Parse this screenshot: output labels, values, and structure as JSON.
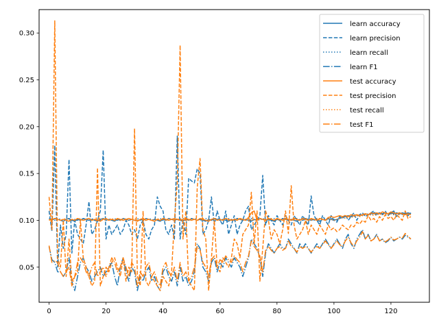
{
  "chart_data": {
    "type": "line",
    "title": "",
    "xlabel": "",
    "ylabel": "",
    "xlim": [
      -3.5,
      133.5
    ],
    "ylim": [
      0.0125,
      0.325
    ],
    "xticks": [
      0,
      20,
      40,
      60,
      80,
      100,
      120
    ],
    "yticks": [
      0.05,
      0.1,
      0.15,
      0.2,
      0.25,
      0.3
    ],
    "ytick_labels": [
      "0.05",
      "0.10",
      "0.15",
      "0.20",
      "0.25",
      "0.30"
    ],
    "grid": false,
    "legend_position": "upper-right",
    "n_points": 128,
    "series": [
      {
        "name": "learn accuracy",
        "color": "#1f77b4",
        "style": "solid",
        "values": [
          0.101,
          0.1,
          0.102,
          0.101,
          0.1,
          0.099,
          0.101,
          0.102,
          0.1,
          0.099,
          0.101,
          0.1,
          0.102,
          0.101,
          0.1,
          0.101,
          0.1,
          0.099,
          0.101,
          0.102,
          0.1,
          0.101,
          0.1,
          0.099,
          0.101,
          0.1,
          0.102,
          0.101,
          0.1,
          0.101,
          0.1,
          0.099,
          0.101,
          0.1,
          0.102,
          0.101,
          0.1,
          0.101,
          0.1,
          0.099,
          0.101,
          0.1,
          0.102,
          0.101,
          0.1,
          0.101,
          0.1,
          0.099,
          0.101,
          0.1,
          0.102,
          0.101,
          0.1,
          0.101,
          0.1,
          0.099,
          0.101,
          0.1,
          0.102,
          0.101,
          0.1,
          0.101,
          0.1,
          0.099,
          0.101,
          0.1,
          0.102,
          0.101,
          0.1,
          0.101,
          0.1,
          0.099,
          0.101,
          0.1,
          0.102,
          0.101,
          0.1,
          0.101,
          0.1,
          0.099,
          0.101,
          0.1,
          0.102,
          0.101,
          0.1,
          0.101,
          0.1,
          0.099,
          0.101,
          0.1,
          0.102,
          0.101,
          0.1,
          0.101,
          0.1,
          0.099,
          0.101,
          0.1,
          0.102,
          0.101,
          0.1,
          0.101,
          0.102,
          0.103,
          0.104,
          0.105,
          0.104,
          0.105,
          0.106,
          0.105,
          0.106,
          0.107,
          0.106,
          0.107,
          0.108,
          0.107,
          0.108,
          0.107,
          0.108,
          0.107,
          0.108,
          0.107,
          0.108,
          0.107,
          0.108,
          0.107,
          0.108,
          0.107
        ]
      },
      {
        "name": "learn precision",
        "color": "#1f77b4",
        "style": "dashed",
        "values": [
          0.11,
          0.088,
          0.18,
          0.05,
          0.095,
          0.07,
          0.085,
          0.165,
          0.065,
          0.1,
          0.085,
          0.08,
          0.075,
          0.095,
          0.12,
          0.085,
          0.09,
          0.1,
          0.11,
          0.175,
          0.08,
          0.095,
          0.085,
          0.09,
          0.095,
          0.085,
          0.09,
          0.1,
          0.095,
          0.085,
          0.09,
          0.08,
          0.095,
          0.1,
          0.085,
          0.08,
          0.09,
          0.095,
          0.125,
          0.115,
          0.11,
          0.09,
          0.085,
          0.095,
          0.08,
          0.19,
          0.08,
          0.1,
          0.085,
          0.145,
          0.142,
          0.14,
          0.155,
          0.15,
          0.085,
          0.09,
          0.1,
          0.125,
          0.095,
          0.11,
          0.1,
          0.095,
          0.11,
          0.085,
          0.095,
          0.105,
          0.085,
          0.095,
          0.1,
          0.11,
          0.115,
          0.09,
          0.095,
          0.1,
          0.105,
          0.148,
          0.095,
          0.105,
          0.1,
          0.095,
          0.105,
          0.1,
          0.095,
          0.105,
          0.1,
          0.095,
          0.105,
          0.1,
          0.095,
          0.105,
          0.1,
          0.095,
          0.126,
          0.105,
          0.1,
          0.095,
          0.105,
          0.1,
          0.095,
          0.105,
          0.1,
          0.098,
          0.104,
          0.102,
          0.106,
          0.1,
          0.104,
          0.108,
          0.1,
          0.106,
          0.108,
          0.104,
          0.106,
          0.108,
          0.11,
          0.105,
          0.108,
          0.106,
          0.11,
          0.105,
          0.108,
          0.11,
          0.104,
          0.108,
          0.106,
          0.108,
          0.105,
          0.108
        ]
      },
      {
        "name": "learn recall",
        "color": "#1f77b4",
        "style": "dotted",
        "values": [
          0.102,
          0.101,
          0.1,
          0.102,
          0.101,
          0.1,
          0.101,
          0.102,
          0.1,
          0.101,
          0.1,
          0.102,
          0.101,
          0.1,
          0.101,
          0.102,
          0.1,
          0.101,
          0.1,
          0.102,
          0.101,
          0.1,
          0.101,
          0.102,
          0.1,
          0.101,
          0.1,
          0.102,
          0.101,
          0.1,
          0.101,
          0.102,
          0.1,
          0.101,
          0.1,
          0.102,
          0.101,
          0.1,
          0.101,
          0.102,
          0.1,
          0.101,
          0.1,
          0.102,
          0.101,
          0.1,
          0.101,
          0.102,
          0.1,
          0.101,
          0.1,
          0.102,
          0.101,
          0.1,
          0.101,
          0.102,
          0.1,
          0.101,
          0.1,
          0.102,
          0.101,
          0.1,
          0.101,
          0.102,
          0.1,
          0.101,
          0.1,
          0.102,
          0.101,
          0.1,
          0.101,
          0.102,
          0.1,
          0.101,
          0.1,
          0.102,
          0.101,
          0.1,
          0.101,
          0.102,
          0.1,
          0.101,
          0.1,
          0.102,
          0.101,
          0.1,
          0.101,
          0.102,
          0.1,
          0.101,
          0.1,
          0.102,
          0.101,
          0.1,
          0.101,
          0.102,
          0.1,
          0.101,
          0.1,
          0.102,
          0.101,
          0.1,
          0.102,
          0.103,
          0.104,
          0.103,
          0.105,
          0.104,
          0.105,
          0.106,
          0.105,
          0.106,
          0.107,
          0.106,
          0.107,
          0.106,
          0.107,
          0.106,
          0.107,
          0.106,
          0.107,
          0.106,
          0.107,
          0.106,
          0.107,
          0.106,
          0.107,
          0.106
        ]
      },
      {
        "name": "learn F1",
        "color": "#1f77b4",
        "style": "dashdot",
        "values": [
          0.072,
          0.058,
          0.055,
          0.045,
          0.045,
          0.04,
          0.045,
          0.06,
          0.035,
          0.025,
          0.04,
          0.055,
          0.06,
          0.05,
          0.045,
          0.035,
          0.04,
          0.045,
          0.05,
          0.04,
          0.045,
          0.05,
          0.055,
          0.04,
          0.03,
          0.05,
          0.06,
          0.045,
          0.035,
          0.05,
          0.045,
          0.025,
          0.04,
          0.035,
          0.045,
          0.05,
          0.035,
          0.04,
          0.03,
          0.025,
          0.045,
          0.05,
          0.04,
          0.035,
          0.045,
          0.03,
          0.05,
          0.035,
          0.04,
          0.03,
          0.035,
          0.045,
          0.075,
          0.07,
          0.05,
          0.045,
          0.035,
          0.055,
          0.06,
          0.045,
          0.055,
          0.05,
          0.06,
          0.055,
          0.05,
          0.06,
          0.055,
          0.05,
          0.04,
          0.05,
          0.06,
          0.08,
          0.075,
          0.07,
          0.06,
          0.04,
          0.065,
          0.075,
          0.07,
          0.065,
          0.07,
          0.075,
          0.07,
          0.07,
          0.08,
          0.075,
          0.07,
          0.065,
          0.075,
          0.07,
          0.075,
          0.07,
          0.065,
          0.07,
          0.075,
          0.07,
          0.075,
          0.08,
          0.075,
          0.07,
          0.075,
          0.08,
          0.075,
          0.07,
          0.08,
          0.085,
          0.075,
          0.07,
          0.08,
          0.085,
          0.09,
          0.08,
          0.085,
          0.078,
          0.08,
          0.085,
          0.078,
          0.08,
          0.076,
          0.078,
          0.082,
          0.078,
          0.08,
          0.082,
          0.08,
          0.084,
          0.082,
          0.08
        ]
      },
      {
        "name": "test accuracy",
        "color": "#ff7f0e",
        "style": "solid",
        "values": [
          0.1,
          0.101,
          0.102,
          0.101,
          0.1,
          0.101,
          0.1,
          0.099,
          0.101,
          0.1,
          0.102,
          0.101,
          0.1,
          0.101,
          0.102,
          0.1,
          0.101,
          0.1,
          0.099,
          0.101,
          0.102,
          0.1,
          0.101,
          0.1,
          0.102,
          0.101,
          0.1,
          0.101,
          0.102,
          0.101,
          0.1,
          0.099,
          0.101,
          0.102,
          0.1,
          0.101,
          0.1,
          0.099,
          0.101,
          0.1,
          0.102,
          0.101,
          0.1,
          0.101,
          0.102,
          0.101,
          0.1,
          0.101,
          0.102,
          0.101,
          0.1,
          0.101,
          0.1,
          0.102,
          0.101,
          0.1,
          0.099,
          0.101,
          0.102,
          0.1,
          0.101,
          0.1,
          0.102,
          0.101,
          0.1,
          0.101,
          0.1,
          0.102,
          0.101,
          0.1,
          0.103,
          0.108,
          0.11,
          0.1,
          0.102,
          0.101,
          0.1,
          0.102,
          0.101,
          0.1,
          0.102,
          0.101,
          0.1,
          0.102,
          0.101,
          0.1,
          0.102,
          0.101,
          0.1,
          0.102,
          0.101,
          0.1,
          0.102,
          0.101,
          0.1,
          0.102,
          0.101,
          0.1,
          0.103,
          0.104,
          0.103,
          0.104,
          0.105,
          0.104,
          0.105,
          0.104,
          0.106,
          0.105,
          0.106,
          0.105,
          0.106,
          0.107,
          0.106,
          0.108,
          0.107,
          0.108,
          0.107,
          0.109,
          0.108,
          0.107,
          0.109,
          0.108,
          0.107,
          0.108,
          0.107,
          0.106,
          0.107,
          0.106
        ]
      },
      {
        "name": "test precision",
        "color": "#ff7f0e",
        "style": "dashed",
        "values": [
          0.125,
          0.09,
          0.313,
          0.06,
          0.05,
          0.1,
          0.04,
          0.08,
          0.035,
          0.04,
          0.045,
          0.1,
          0.06,
          0.05,
          0.04,
          0.03,
          0.035,
          0.156,
          0.03,
          0.04,
          0.05,
          0.045,
          0.055,
          0.06,
          0.05,
          0.04,
          0.06,
          0.035,
          0.05,
          0.045,
          0.198,
          0.04,
          0.03,
          0.11,
          0.035,
          0.03,
          0.04,
          0.035,
          0.03,
          0.025,
          0.04,
          0.035,
          0.03,
          0.045,
          0.1,
          0.14,
          0.287,
          0.08,
          0.11,
          0.035,
          0.03,
          0.025,
          0.135,
          0.166,
          0.09,
          0.08,
          0.025,
          0.06,
          0.1,
          0.05,
          0.045,
          0.06,
          0.055,
          0.05,
          0.06,
          0.08,
          0.075,
          0.06,
          0.085,
          0.09,
          0.095,
          0.13,
          0.075,
          0.11,
          0.035,
          0.07,
          0.11,
          0.1,
          0.08,
          0.09,
          0.085,
          0.075,
          0.09,
          0.11,
          0.086,
          0.137,
          0.095,
          0.08,
          0.085,
          0.09,
          0.1,
          0.085,
          0.095,
          0.09,
          0.085,
          0.095,
          0.09,
          0.085,
          0.095,
          0.09,
          0.092,
          0.088,
          0.09,
          0.095,
          0.092,
          0.09,
          0.095,
          0.093,
          0.098,
          0.096,
          0.1,
          0.098,
          0.105,
          0.1,
          0.102,
          0.098,
          0.104,
          0.1,
          0.106,
          0.102,
          0.104,
          0.1,
          0.106,
          0.103,
          0.1,
          0.11,
          0.102,
          0.104
        ]
      },
      {
        "name": "test recall",
        "color": "#ff7f0e",
        "style": "dotted",
        "values": [
          0.101,
          0.1,
          0.102,
          0.101,
          0.1,
          0.101,
          0.102,
          0.1,
          0.101,
          0.1,
          0.102,
          0.101,
          0.1,
          0.101,
          0.102,
          0.1,
          0.101,
          0.1,
          0.102,
          0.101,
          0.1,
          0.101,
          0.102,
          0.1,
          0.101,
          0.1,
          0.102,
          0.101,
          0.1,
          0.101,
          0.102,
          0.1,
          0.101,
          0.1,
          0.102,
          0.101,
          0.1,
          0.101,
          0.102,
          0.1,
          0.101,
          0.1,
          0.102,
          0.101,
          0.1,
          0.101,
          0.102,
          0.1,
          0.101,
          0.1,
          0.102,
          0.101,
          0.1,
          0.101,
          0.102,
          0.1,
          0.101,
          0.1,
          0.102,
          0.101,
          0.1,
          0.101,
          0.102,
          0.1,
          0.101,
          0.1,
          0.102,
          0.101,
          0.1,
          0.101,
          0.102,
          0.1,
          0.101,
          0.1,
          0.102,
          0.101,
          0.1,
          0.101,
          0.102,
          0.1,
          0.101,
          0.1,
          0.102,
          0.101,
          0.1,
          0.101,
          0.102,
          0.1,
          0.101,
          0.1,
          0.102,
          0.101,
          0.1,
          0.101,
          0.102,
          0.1,
          0.101,
          0.1,
          0.102,
          0.101,
          0.1,
          0.101,
          0.102,
          0.103,
          0.102,
          0.104,
          0.103,
          0.104,
          0.105,
          0.104,
          0.105,
          0.106,
          0.105,
          0.106,
          0.105,
          0.106,
          0.107,
          0.106,
          0.107,
          0.106,
          0.107,
          0.106,
          0.107,
          0.106,
          0.107,
          0.106,
          0.107,
          0.106
        ]
      },
      {
        "name": "test F1",
        "color": "#ff7f0e",
        "style": "dashdot",
        "values": [
          0.073,
          0.055,
          0.057,
          0.055,
          0.045,
          0.04,
          0.045,
          0.05,
          0.03,
          0.04,
          0.055,
          0.06,
          0.055,
          0.045,
          0.04,
          0.05,
          0.055,
          0.04,
          0.045,
          0.05,
          0.04,
          0.05,
          0.06,
          0.055,
          0.045,
          0.05,
          0.06,
          0.05,
          0.04,
          0.055,
          0.05,
          0.03,
          0.045,
          0.04,
          0.05,
          0.055,
          0.04,
          0.045,
          0.035,
          0.03,
          0.05,
          0.055,
          0.045,
          0.04,
          0.05,
          0.035,
          0.055,
          0.04,
          0.045,
          0.035,
          0.04,
          0.05,
          0.072,
          0.068,
          0.055,
          0.05,
          0.04,
          0.058,
          0.062,
          0.05,
          0.058,
          0.055,
          0.062,
          0.058,
          0.055,
          0.062,
          0.058,
          0.055,
          0.045,
          0.055,
          0.062,
          0.078,
          0.072,
          0.068,
          0.062,
          0.045,
          0.068,
          0.072,
          0.068,
          0.065,
          0.07,
          0.072,
          0.068,
          0.07,
          0.078,
          0.072,
          0.07,
          0.066,
          0.072,
          0.07,
          0.072,
          0.07,
          0.066,
          0.07,
          0.072,
          0.07,
          0.074,
          0.078,
          0.074,
          0.07,
          0.074,
          0.078,
          0.074,
          0.072,
          0.078,
          0.082,
          0.076,
          0.072,
          0.078,
          0.082,
          0.088,
          0.08,
          0.084,
          0.078,
          0.08,
          0.084,
          0.078,
          0.08,
          0.077,
          0.079,
          0.082,
          0.079,
          0.08,
          0.082,
          0.081,
          0.086,
          0.083,
          0.08
        ]
      }
    ]
  }
}
